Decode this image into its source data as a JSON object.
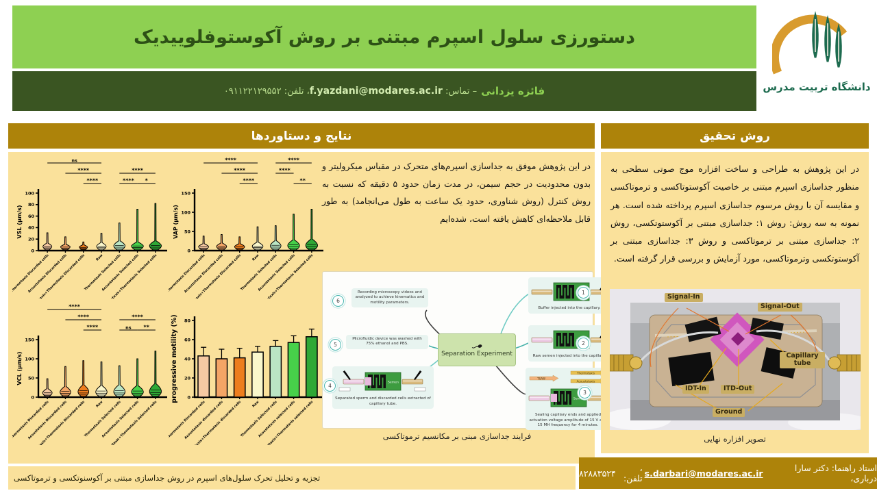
{
  "header": {
    "title": "دستورزی سلول اسپرم مبتنی بر روش آکوستوفلوییدیک",
    "author": "فائزه یزدانی",
    "contact_label": "– تماس:",
    "email": "f.yazdani@modares.ac.ir",
    "phone_label": "، تلفن:",
    "phone": "۰۹۱۱۲۲۱۲۹۵۵۲",
    "logo_text": "دانشگاه تربیت مدرس"
  },
  "left_section": {
    "header": "نتایج و دستاوردها",
    "paragraph": "در این پژوهش موفق به جداسازی اسپرم‌های متحرک در مقیاس میکرولیتر و بدون محدودیت در حجم سیمن، در مدت زمان حدود ۵ دقیقه که نسبت به روش کنترل (روش شناوری، حدود یک ساعت به طول می‌انجامد) به طور قابل ملاحظه‌ای کاهش یافته است، شده‌ایم",
    "diagram_caption": "فرایند جداسازی مبنی بر مکانسیم ترموتاکسی",
    "bottom_caption": "تجزیه و تحلیل تحرک سلول‌های اسپرم در روش جداسازی مبتنی بر آکوسنوتکسی و ترموتاکسی"
  },
  "right_section": {
    "header": "روش تحقیق",
    "paragraph": "در این پژوهش به طراحی و ساخت افزاره موج صوتی سطحی به منظور جداسازی اسپرم مبتنی بر خاصیت آکوستوتاکسی و ترموتاکسی و مقایسه آن با روش مرسوم جداسازی اسپرم پرداخته شده است. هر نمونه به سه روش: روش ۱: جداسازی مبتنی بر آکوستوتکسی، روش ۲: جداسازی مبتنی بر ترموتاکسی و روش ۳: جداسازی مبتنی بر آکوستوتکسی وترموتاکسی، مورد آزمایش و بررسی قرار گرفته است.",
    "photo_caption": "تصویر افزاره نهایی",
    "photo_labels": {
      "signal_in": "Signal-In",
      "signal_out": "Signal-Out",
      "idt_in": "IDT-In",
      "itd_out": "ITD-Out",
      "capillary": "Capillary tube",
      "ground": "Ground"
    }
  },
  "footer": {
    "supervisor": "استاد راهنما: دکتر سارا درباری،",
    "email": "s.darbari@modares.ac.ir",
    "phone_label": "، تلفن:",
    "phone": "۸۲۸۸۳۵۲۴"
  },
  "diagram": {
    "center_label": "Separation Experiment",
    "chip_labels": {
      "buffer": "Buffer",
      "semen": "Semen",
      "tsaw": "TSAW",
      "thermotaxis": "Thermotaxis",
      "acoustotaxis": "Acoustotaxis"
    },
    "nodes": [
      {
        "num": "1",
        "caption": "Buffer injected into the capillary."
      },
      {
        "num": "2",
        "caption": "Raw semen injected into the capillary."
      },
      {
        "num": "3",
        "caption": "Sealing capillary ends and applied actuation voltage amplitude of 15 V and 15 MH frequency for 4 minutes."
      },
      {
        "num": "4",
        "caption": "Separated sperm and discarded cells extracted of capillary tube."
      },
      {
        "num": "5",
        "caption": "Microfluidic device was washed with 75% ethanol and PBS."
      },
      {
        "num": "6",
        "caption": "Recording microscopy videos and analyzed to achieve kinematics and motility parameters."
      }
    ]
  },
  "chart_data": [
    {
      "type": "violin",
      "ylabel": "VSL (µm/s)",
      "ylim": [
        0,
        100
      ],
      "yticks": [
        0,
        20,
        40,
        60,
        80,
        100
      ],
      "categories": [
        "Thermotaxis Discarded cells",
        "Acoustotaxis Discarded cells",
        "Acoustotaxis+Thermotaxis Discarded cells",
        "Raw",
        "Thermotaxis Selected cells",
        "Acoustotaxis Selected cells",
        "Acoustotaxis+Thermotaxis Selected cells"
      ],
      "colors": [
        "#F6C9A2",
        "#F4A566",
        "#EE7D1E",
        "#FAF7CC",
        "#BAE5C4",
        "#47D04A",
        "#2FA836"
      ],
      "max": [
        31,
        24,
        15,
        30,
        48,
        72,
        82
      ],
      "bulge": [
        13,
        11,
        10,
        14,
        17,
        15,
        17
      ],
      "widths": [
        0.75,
        0.8,
        0.7,
        0.8,
        0.95,
        1,
        1
      ],
      "annotations": [
        {
          "label": "ns",
          "from": 1,
          "to": 4,
          "row": 0
        },
        {
          "label": "****",
          "from": 2,
          "to": 4,
          "row": 1
        },
        {
          "label": "****",
          "from": 5,
          "to": 7,
          "row": 1
        },
        {
          "label": "****",
          "from": 3,
          "to": 4,
          "row": 2
        },
        {
          "label": "****",
          "from": 5,
          "to": 6,
          "row": 2
        },
        {
          "label": "*",
          "from": 6,
          "to": 7,
          "row": 2
        }
      ]
    },
    {
      "type": "violin",
      "ylabel": "VAP (µm/s)",
      "ylim": [
        0,
        150
      ],
      "yticks": [
        0,
        50,
        100,
        150
      ],
      "categories": [
        "Thermotaxis Discarded cells",
        "Acoustotaxis Discarded cells",
        "Acoustotaxis+Thermotaxis Discarded cells",
        "Raw",
        "Thermotaxis Selected cells",
        "Acoustotaxis Selected cells",
        "Acoustotaxis+Thermotaxis Selected cells"
      ],
      "colors": [
        "#F6C9A2",
        "#F4A566",
        "#EE7D1E",
        "#FAF7CC",
        "#BAE5C4",
        "#47D04A",
        "#2FA836"
      ],
      "max": [
        38,
        42,
        36,
        62,
        65,
        95,
        108
      ],
      "bulge": [
        18,
        20,
        18,
        22,
        26,
        28,
        30
      ],
      "widths": [
        0.85,
        0.85,
        0.85,
        0.9,
        0.9,
        1,
        1
      ],
      "annotations": [
        {
          "label": "****",
          "from": 1,
          "to": 4,
          "row": 0
        },
        {
          "label": "****",
          "from": 5,
          "to": 7,
          "row": 0
        },
        {
          "label": "****",
          "from": 2,
          "to": 4,
          "row": 1
        },
        {
          "label": "****",
          "from": 5,
          "to": 6,
          "row": 1
        },
        {
          "label": "****",
          "from": 3,
          "to": 4,
          "row": 2
        },
        {
          "label": "**",
          "from": 6,
          "to": 7,
          "row": 2
        }
      ]
    },
    {
      "type": "violin",
      "ylabel": "VCL (µm/s)",
      "ylim": [
        0,
        150
      ],
      "yticks": [
        0,
        50,
        100,
        150
      ],
      "categories": [
        "Thermotaxis Discarded cells",
        "Acoustotaxis Discarded cells",
        "Acoustotaxis+Thermotaxis Discarded cells",
        "Raw",
        "Thermotaxis Selected cells",
        "Acoustotaxis Selected cells",
        "Acoustotaxis+Thermotaxis Selected cells"
      ],
      "colors": [
        "#F6C9A2",
        "#F4A566",
        "#EE7D1E",
        "#FAF7CC",
        "#BAE5C4",
        "#47D04A",
        "#2FA836"
      ],
      "max": [
        48,
        80,
        95,
        92,
        82,
        100,
        120
      ],
      "bulge": [
        22,
        28,
        32,
        30,
        32,
        30,
        35
      ],
      "widths": [
        0.8,
        0.9,
        0.9,
        0.95,
        0.95,
        1,
        1
      ],
      "annotations": [
        {
          "label": "****",
          "from": 1,
          "to": 4,
          "row": 0
        },
        {
          "label": "****",
          "from": 2,
          "to": 4,
          "row": 1
        },
        {
          "label": "****",
          "from": 5,
          "to": 7,
          "row": 1
        },
        {
          "label": "****",
          "from": 3,
          "to": 4,
          "row": 2
        },
        {
          "label": "ns",
          "from": 5,
          "to": 6,
          "row": 2
        },
        {
          "label": "**",
          "from": 6,
          "to": 7,
          "row": 2
        }
      ]
    },
    {
      "type": "bar",
      "ylabel": "progressive motility (%)",
      "ylim": [
        0,
        80
      ],
      "yticks": [
        0,
        20,
        40,
        60,
        80
      ],
      "categories": [
        "Thermotaxis Discarded cells",
        "Acoustotaxis discarded cells",
        "Acoustotaxis+Thermotaxis discarded cells",
        "Raw",
        "Thermotaxis Selected cells",
        "Acoustotaxis selected cells",
        "Acoustotaxis+Thermotaxis selected cells"
      ],
      "colors": [
        "#F6C9A2",
        "#F4A566",
        "#EE7D1E",
        "#FAF7CC",
        "#BAE5C4",
        "#47D04A",
        "#2FA836"
      ],
      "values": [
        43,
        40,
        41,
        47,
        53,
        57,
        63
      ],
      "errors": [
        9,
        10,
        10,
        6,
        6,
        7,
        8
      ]
    }
  ]
}
